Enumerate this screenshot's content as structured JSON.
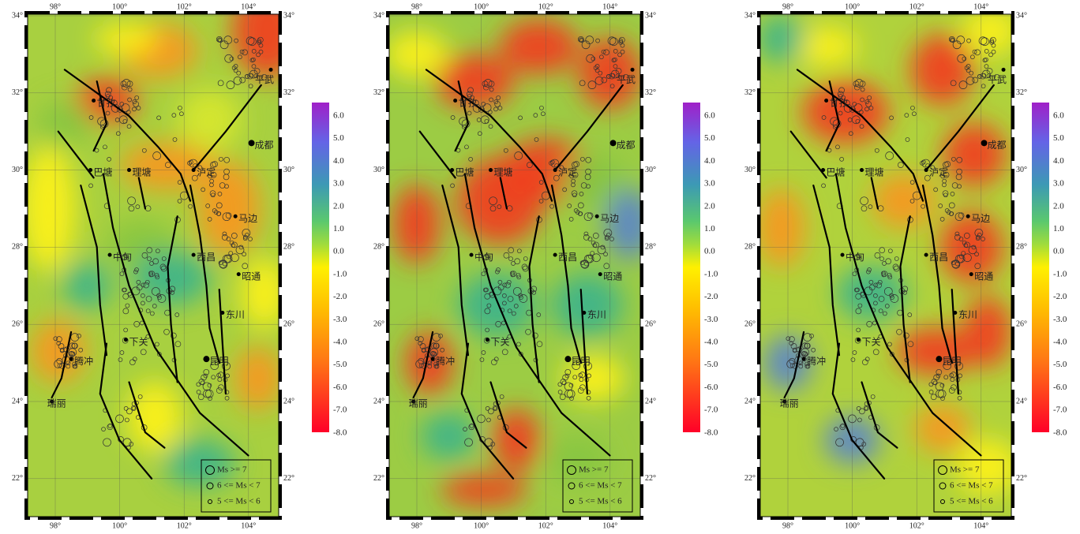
{
  "map": {
    "lon_ticks": [
      "98°",
      "100°",
      "102°",
      "104°"
    ],
    "lat_ticks": [
      "34°",
      "32°",
      "30°",
      "28°",
      "26°",
      "24°",
      "22°"
    ],
    "colorbar_labels": [
      "6.0",
      "5.0",
      "4.0",
      "3.0",
      "2.0",
      "1.0",
      "0.0",
      "-1.0",
      "-2.0",
      "-3.0",
      "-4.0",
      "-5.0",
      "-6.0",
      "-7.0",
      "-8.0"
    ],
    "cities": [
      "甘孜",
      "平武",
      "成都",
      "巴塘",
      "理塘",
      "泸定",
      "马边",
      "中甸",
      "西昌",
      "昭通",
      "东川",
      "下关",
      "腾冲",
      "昆明",
      "瑞丽"
    ],
    "legend": [
      "Ms >= 7",
      "6 <= Ms < 7",
      "5 <= Ms < 6"
    ]
  }
}
